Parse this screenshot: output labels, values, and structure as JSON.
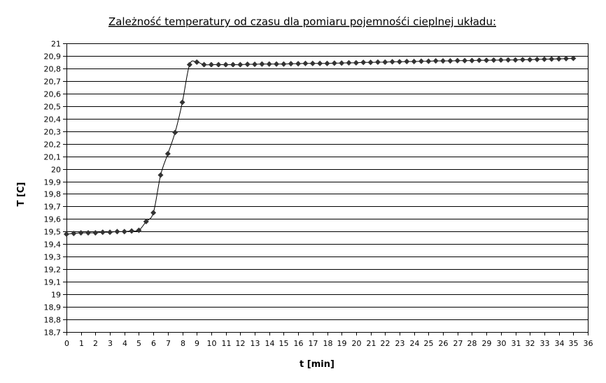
{
  "chart_data": {
    "type": "line",
    "title": "Zależność temperatury od czasu dla pomiaru pojemnośći cieplnej układu:",
    "xlabel": "t [min]",
    "ylabel": "T [C]",
    "xlim": [
      0,
      36
    ],
    "ylim": [
      18.7,
      21
    ],
    "x_ticks": [
      "0",
      "1",
      "2",
      "3",
      "4",
      "5",
      "6",
      "7",
      "8",
      "9",
      "10",
      "11",
      "12",
      "13",
      "14",
      "15",
      "16",
      "17",
      "18",
      "19",
      "20",
      "21",
      "22",
      "23",
      "24",
      "25",
      "26",
      "27",
      "28",
      "29",
      "30",
      "31",
      "32",
      "33",
      "34",
      "35",
      "36"
    ],
    "y_ticks": [
      "21",
      "20,9",
      "20,8",
      "20,7",
      "20,6",
      "20,5",
      "20,4",
      "20,3",
      "20,2",
      "20,1",
      "20",
      "19,9",
      "19,8",
      "19,7",
      "19,6",
      "19,5",
      "19,4",
      "19,3",
      "19,2",
      "19,1",
      "19",
      "18,9",
      "18,8",
      "18,7"
    ],
    "grid": true,
    "series": [
      {
        "x": [
          0,
          0.5,
          1,
          1.5,
          2,
          2.5,
          3,
          3.5,
          4,
          4.5,
          5,
          5.5,
          6,
          6.5,
          7,
          7.5,
          8,
          8.5,
          9,
          9.5,
          10,
          10.5,
          11,
          11.5,
          12,
          12.5,
          13,
          13.5,
          14,
          14.5,
          15,
          15.5,
          16,
          16.5,
          17,
          17.5,
          18,
          18.5,
          19,
          19.5,
          20,
          20.5,
          21,
          21.5,
          22,
          22.5,
          23,
          23.5,
          24,
          24.5,
          25,
          25.5,
          26,
          26.5,
          27,
          27.5,
          28,
          28.5,
          29,
          29.5,
          30,
          30.5,
          31,
          31.5,
          32,
          32.5,
          33,
          33.5,
          34,
          34.5,
          35
        ],
        "y": [
          19.48,
          19.485,
          19.49,
          19.49,
          19.49,
          19.495,
          19.495,
          19.5,
          19.5,
          19.505,
          19.51,
          19.58,
          19.65,
          19.95,
          20.12,
          20.29,
          20.53,
          20.83,
          20.85,
          20.83,
          20.83,
          20.83,
          20.83,
          20.83,
          20.83,
          20.833,
          20.833,
          20.835,
          20.835,
          20.835,
          20.835,
          20.838,
          20.838,
          20.84,
          20.84,
          20.84,
          20.84,
          20.842,
          20.843,
          20.845,
          20.845,
          20.848,
          20.848,
          20.85,
          20.85,
          20.853,
          20.853,
          20.855,
          20.855,
          20.857,
          20.857,
          20.86,
          20.86,
          20.86,
          20.862,
          20.862,
          20.863,
          20.865,
          20.865,
          20.866,
          20.867,
          20.868,
          20.868,
          20.87,
          20.87,
          20.872,
          20.873,
          20.875,
          20.876,
          20.878,
          20.88
        ]
      }
    ]
  }
}
